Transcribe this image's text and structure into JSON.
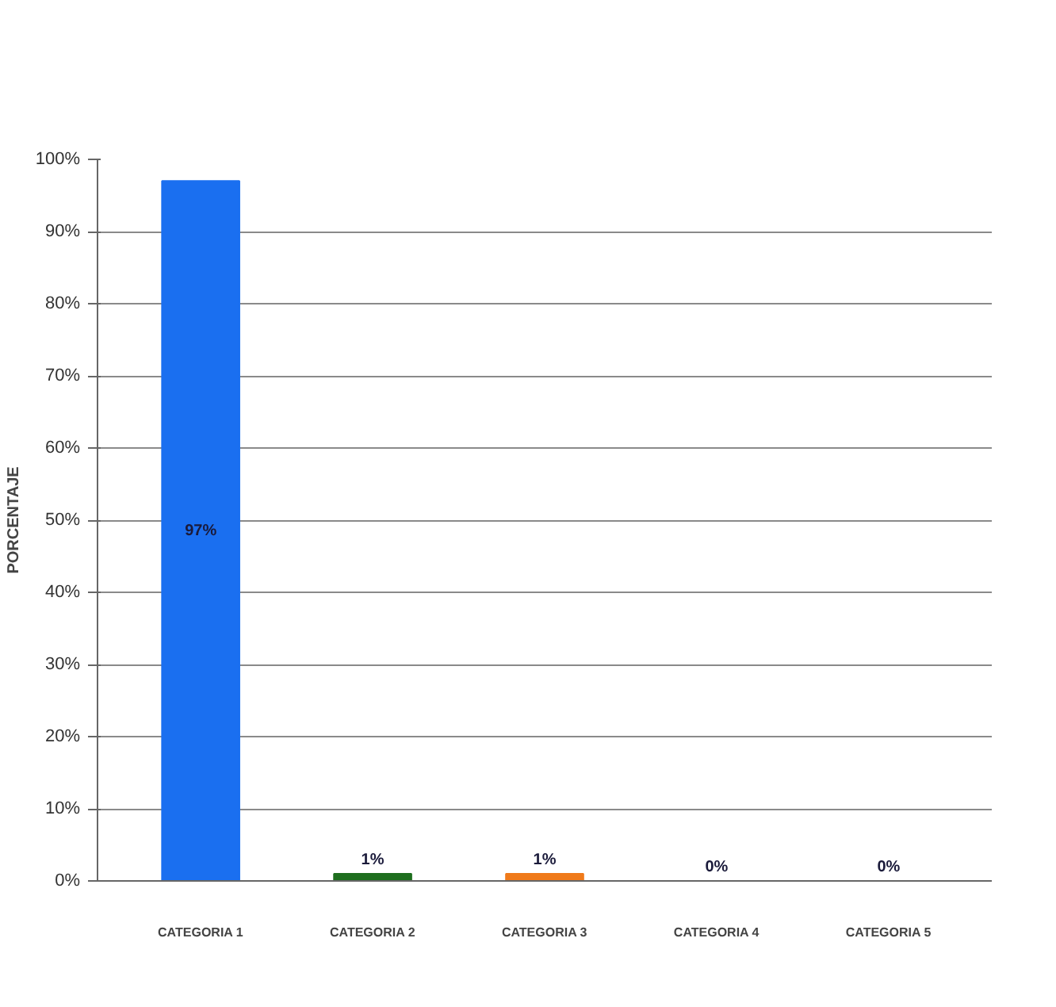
{
  "chart_data": {
    "type": "bar",
    "ylabel": "PORCENTAJE",
    "categories": [
      "CATEGORIA 1",
      "CATEGORIA 2",
      "CATEGORIA 3",
      "CATEGORIA 4",
      "CATEGORIA 5"
    ],
    "values": [
      97,
      1,
      1,
      0,
      0
    ],
    "colors": [
      "#1a6ff0",
      "#1e6e1e",
      "#f07a1a",
      "#c0202a",
      "#2a2ab4"
    ],
    "value_labels": [
      "97%",
      "1%",
      "1%",
      "0%",
      "0%"
    ],
    "ylim": [
      0,
      100
    ],
    "yticks": [
      {
        "value": 0,
        "label": "0%"
      },
      {
        "value": 10,
        "label": "10%"
      },
      {
        "value": 20,
        "label": "20%"
      },
      {
        "value": 30,
        "label": "30%"
      },
      {
        "value": 40,
        "label": "40%"
      },
      {
        "value": 50,
        "label": "50%"
      },
      {
        "value": 60,
        "label": "60%"
      },
      {
        "value": 70,
        "label": "70%"
      },
      {
        "value": 80,
        "label": "80%"
      },
      {
        "value": 90,
        "label": "90%"
      },
      {
        "value": 100,
        "label": "100%"
      }
    ],
    "grid": "y"
  }
}
